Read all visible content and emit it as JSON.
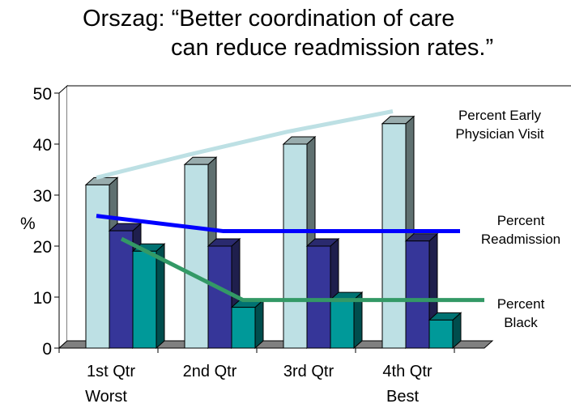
{
  "title": {
    "line1": "Orszag: “Better coordination of care",
    "line2": "can reduce readmission rates.”"
  },
  "chart_data": {
    "type": "bar",
    "subtype": "3d-clustered-bar-with-line-overlays",
    "title": "Orszag: “Better coordination of care can reduce readmission rates.”",
    "xlabel": "",
    "ylabel": "%",
    "ylim": [
      0,
      50
    ],
    "yticks": [
      "0",
      "10",
      "20",
      "30",
      "40",
      "50"
    ],
    "grid": false,
    "categories": [
      "1st Qtr",
      "2nd Qtr",
      "3rd Qtr",
      "4th Qtr"
    ],
    "category_sublabels": [
      "Worst",
      "",
      "",
      "Best"
    ],
    "series": [
      {
        "name": "Percent Early Physician Visit",
        "values": [
          32,
          36,
          40,
          44
        ],
        "color": "#bde0e4",
        "side_color": "#5f7070",
        "top_color": "#98acad"
      },
      {
        "name": "Percent Readmission",
        "values": [
          23,
          20,
          20,
          21
        ],
        "color": "#363699",
        "side_color": "#1f1f4d",
        "top_color": "#2a2a6e"
      },
      {
        "name": "Percent Black",
        "values": [
          19,
          8,
          9.5,
          5.5
        ],
        "color": "#009999",
        "side_color": "#004d4d",
        "top_color": "#007272"
      }
    ],
    "lines": [
      {
        "name": "Percent Early Physician Visit",
        "label_lines": [
          "Percent Early",
          "Physician Visit"
        ],
        "values": [
          32,
          36.5,
          41,
          45
        ],
        "color": "#bde0e4"
      },
      {
        "name": "Percent Readmission",
        "label_lines": [
          "Percent",
          "Readmission"
        ],
        "values": [
          24.5,
          21.5,
          21.5,
          21.5
        ],
        "color": "#0000ff"
      },
      {
        "name": "Percent Black",
        "label_lines": [
          "Percent",
          "Black"
        ],
        "values": [
          20,
          8,
          8,
          8
        ],
        "color": "#339966"
      }
    ],
    "legend": "inline-right"
  }
}
